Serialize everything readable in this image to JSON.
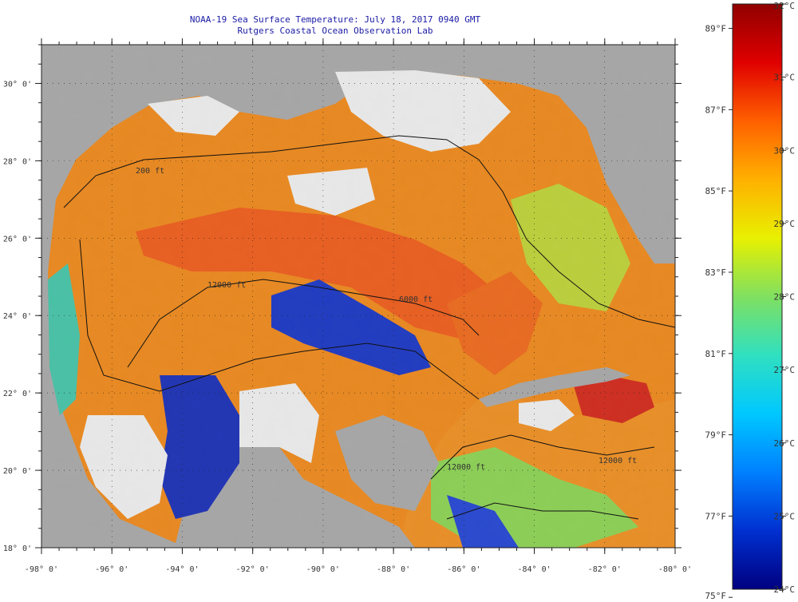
{
  "header": {
    "title": "NOAA-19 Sea Surface Temperature:  July 18, 2017 0940 GMT",
    "subtitle": "Rutgers Coastal Ocean Observation Lab"
  },
  "axes": {
    "lon_labels": [
      "-98° 0'",
      "-96° 0'",
      "-94° 0'",
      "-92° 0'",
      "-90° 0'",
      "-88° 0'",
      "-86° 0'",
      "-84° 0'",
      "-82° 0'",
      "-80° 0'"
    ],
    "lat_labels": [
      "30° 0'",
      "28° 0'",
      "26° 0'",
      "24° 0'",
      "22° 0'",
      "20° 0'",
      "18° 0'"
    ],
    "lon_range": [
      -98,
      -80
    ],
    "lat_range": [
      18,
      31
    ]
  },
  "colorbar": {
    "min_c": 24,
    "max_c": 32,
    "celsius_labels": [
      "32°C",
      "31°C",
      "30°C",
      "29°C",
      "28°C",
      "27°C",
      "26°C",
      "25°C",
      "24°C"
    ],
    "fahrenheit_labels": [
      "89°F",
      "87°F",
      "85°F",
      "83°F",
      "81°F",
      "79°F",
      "77°F",
      "75°F"
    ],
    "colors": [
      "#000080",
      "#0030d0",
      "#0080ff",
      "#00c8ff",
      "#30e0c0",
      "#80e060",
      "#e8f000",
      "#ffb000",
      "#ff6000",
      "#e00000",
      "#900000"
    ]
  },
  "contours": [
    "200 ft",
    "12000 ft",
    "12000 ft",
    "12000 ft",
    "6000 ft"
  ],
  "colors": {
    "land": "#b0b0b0",
    "cloud": "#ffffff",
    "title": "#1a1aa6"
  }
}
